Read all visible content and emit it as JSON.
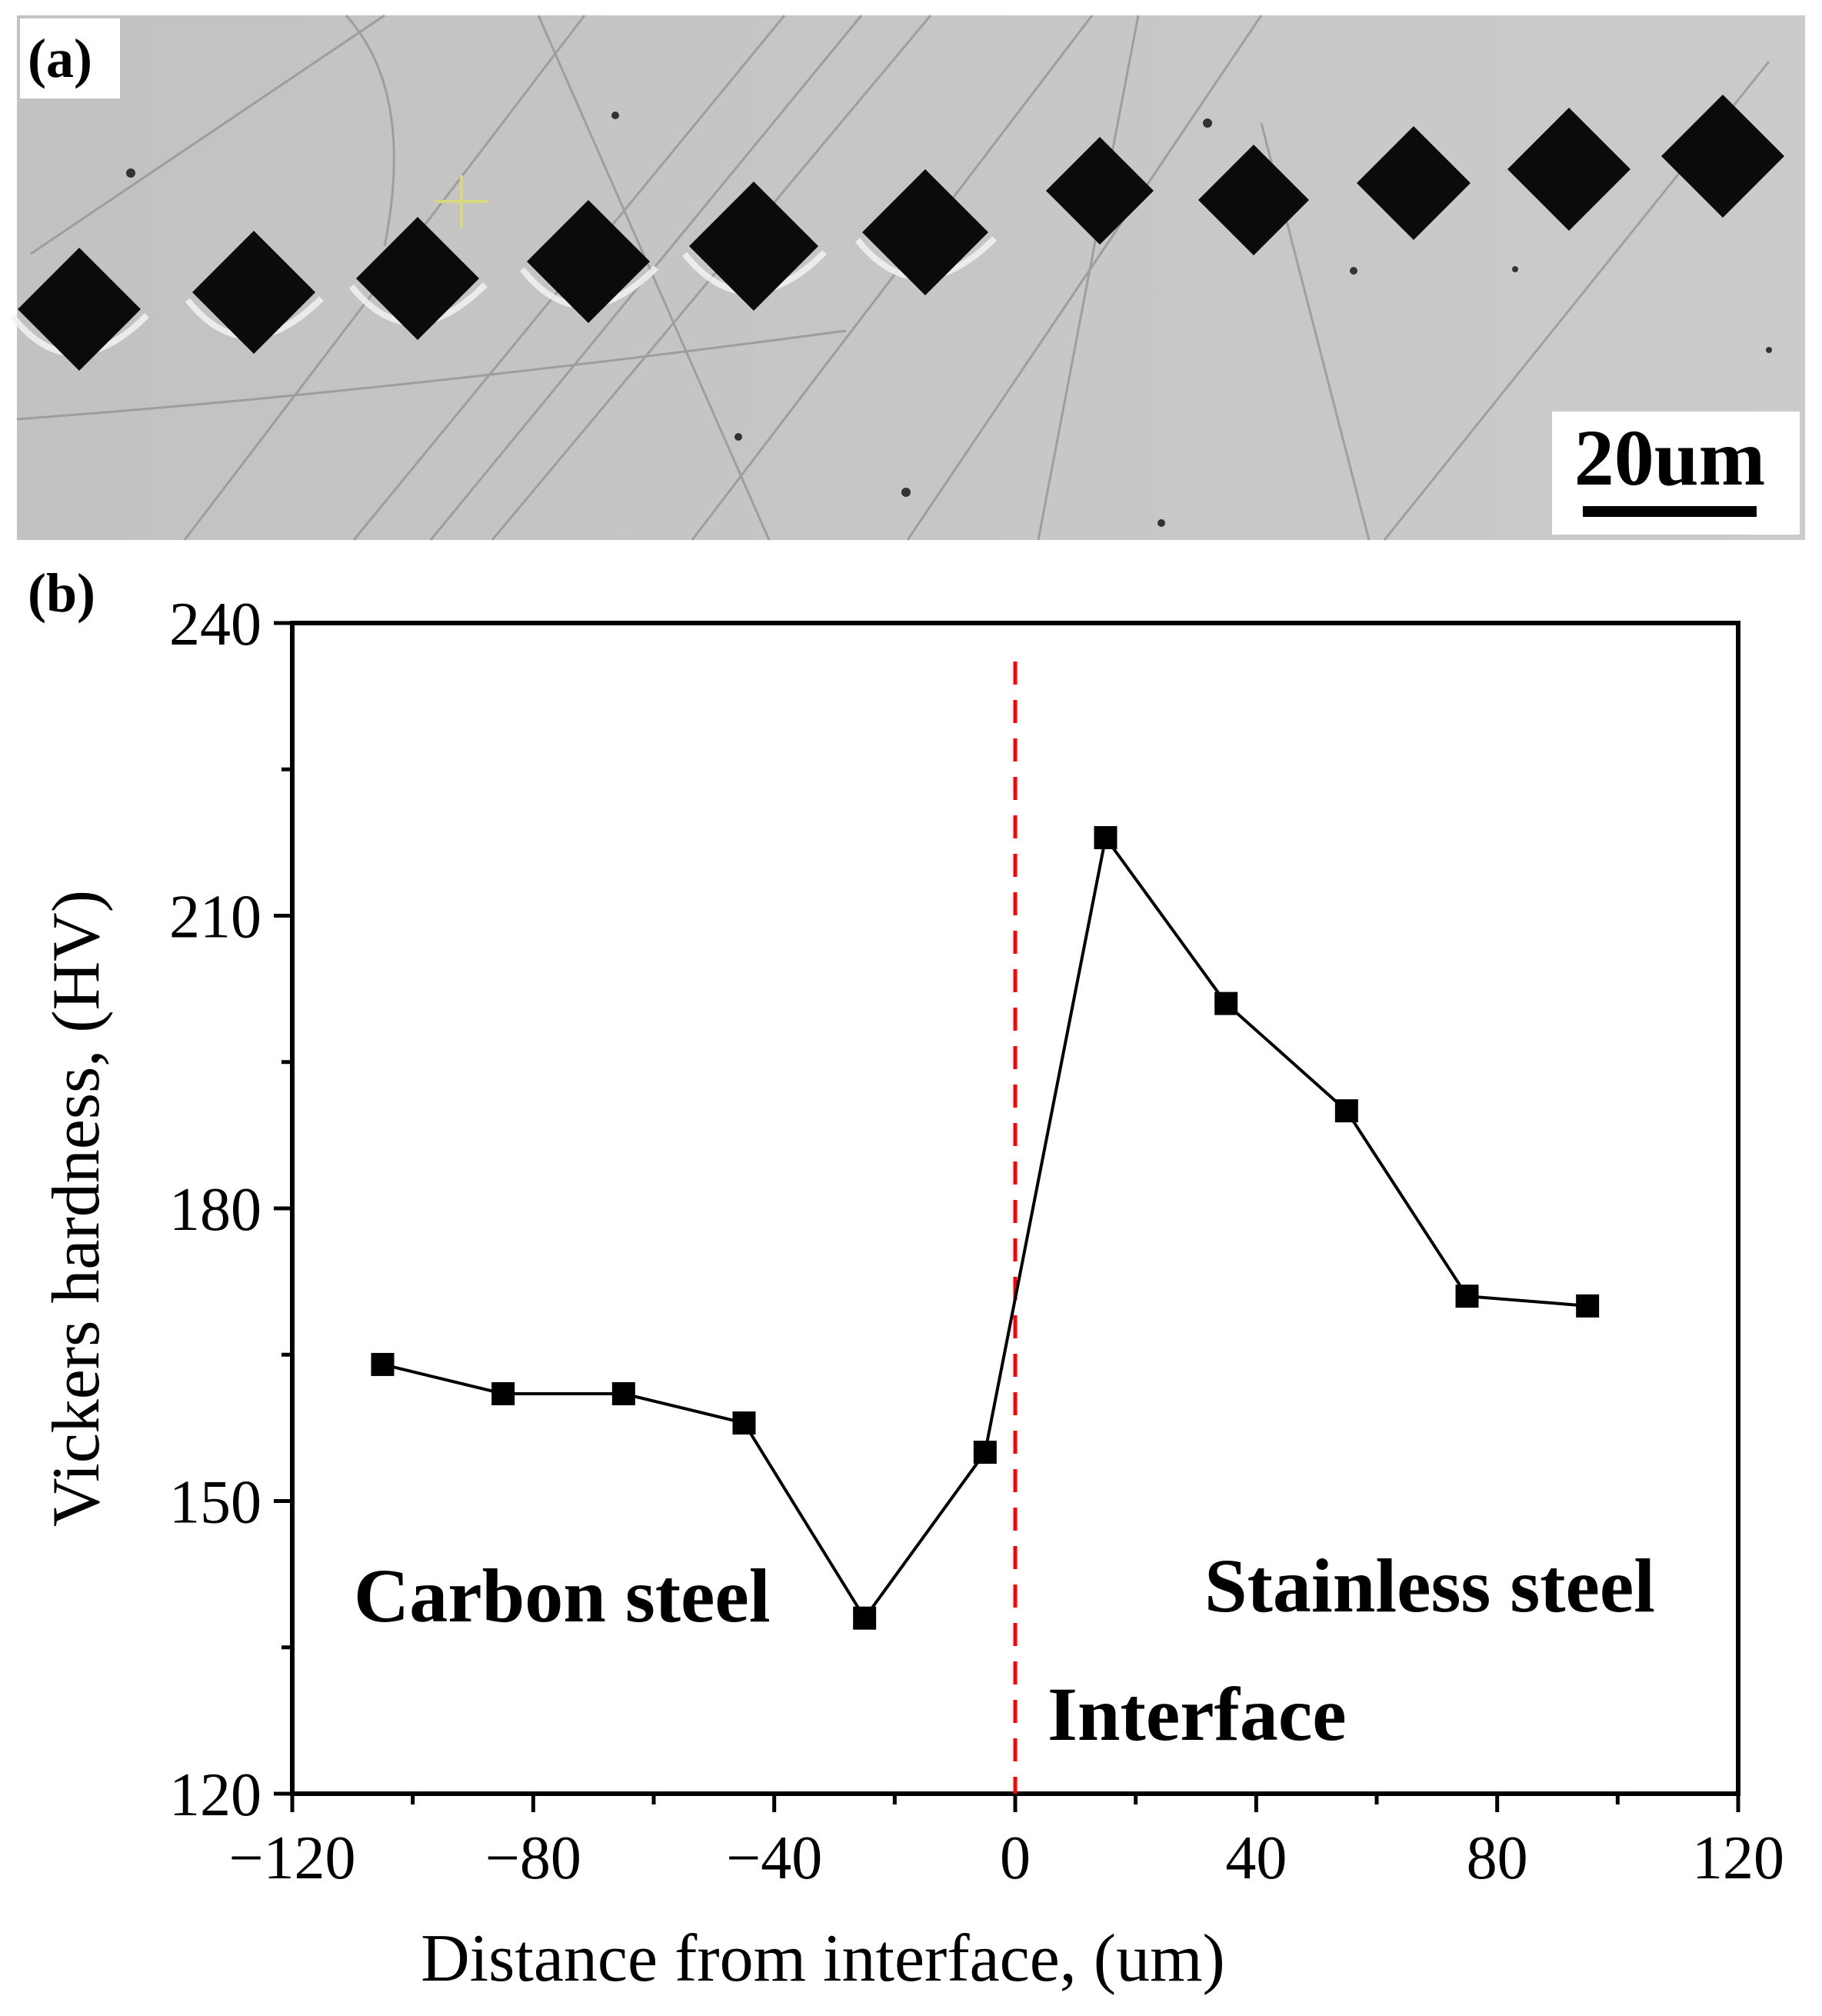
{
  "panel_a": {
    "label": "(a)",
    "scale_bar_text": "20um",
    "colors": {
      "background": "#c4c4c4",
      "indent": "#0b0b0b",
      "marker": "#d8d880"
    }
  },
  "panel_b": {
    "label": "(b)"
  },
  "chart_data": {
    "type": "line",
    "title": "",
    "xlabel": "Distance from interface, (um)",
    "ylabel": "Vickers hardness, (HV)",
    "xlim": [
      -120,
      120
    ],
    "ylim": [
      120,
      240
    ],
    "xticks": [
      -120,
      -80,
      -40,
      0,
      40,
      80,
      120
    ],
    "xtick_labels": [
      "−120",
      "−80",
      "−40",
      "0",
      "40",
      "80",
      "120"
    ],
    "yticks": [
      120,
      150,
      180,
      210,
      240
    ],
    "ytick_labels": [
      "120",
      "150",
      "180",
      "210",
      "240"
    ],
    "grid": false,
    "series": [
      {
        "name": "Vickers hardness",
        "x": [
          -105,
          -85,
          -65,
          -45,
          -25,
          -5,
          15,
          35,
          55,
          75,
          95
        ],
        "y": [
          164,
          161,
          161,
          158,
          138,
          155,
          218,
          201,
          190,
          171,
          170
        ],
        "marker": "square",
        "color": "#000000"
      }
    ],
    "interface_line": {
      "x": 0,
      "color": "#ff0000",
      "style": "dashed"
    },
    "annotations": {
      "carbon": "Carbon steel",
      "stainless": "Stainless steel",
      "interface": "Interface"
    }
  }
}
